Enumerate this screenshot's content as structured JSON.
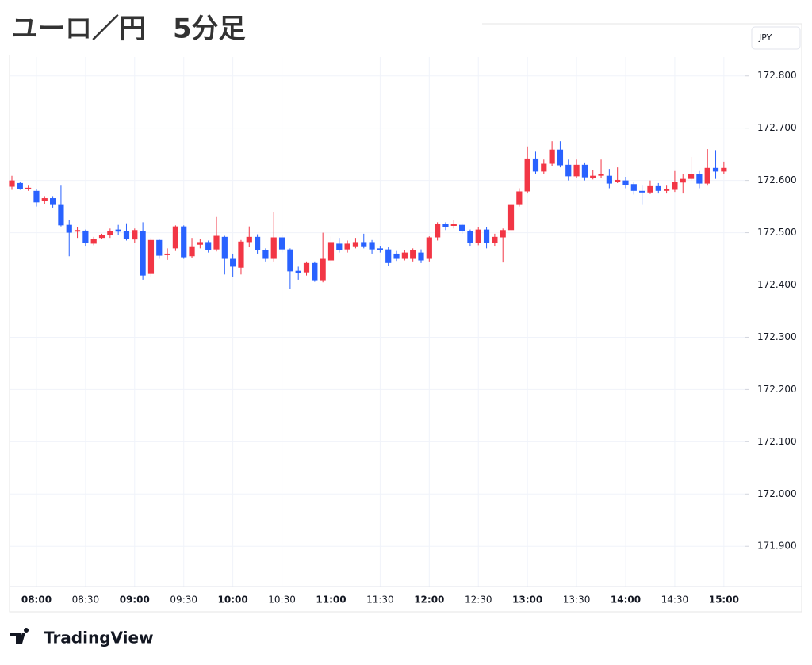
{
  "chart_data": {
    "type": "candlestick",
    "title": "ユーロ／円　5分足",
    "currency": "JPY",
    "brand": "TradingView",
    "up_color": "#f23645",
    "down_color": "#2962ff",
    "ylim": [
      171.823,
      172.836
    ],
    "yticks": [
      {
        "value": 171.9,
        "label": "171.900"
      },
      {
        "value": 172.0,
        "label": "172.000"
      },
      {
        "value": 172.1,
        "label": "172.100"
      },
      {
        "value": 172.2,
        "label": "172.200"
      },
      {
        "value": 172.3,
        "label": "172.300"
      },
      {
        "value": 172.4,
        "label": "172.400"
      },
      {
        "value": 172.5,
        "label": "172.500"
      },
      {
        "value": 172.6,
        "label": "172.600"
      },
      {
        "value": 172.7,
        "label": "172.700"
      },
      {
        "value": 172.8,
        "label": "172.800"
      }
    ],
    "grid": true,
    "categories": [
      null,
      null,
      null,
      "08:00",
      null,
      null,
      null,
      null,
      null,
      "08:30",
      null,
      null,
      null,
      null,
      null,
      "09:00",
      null,
      null,
      null,
      null,
      null,
      "09:30",
      null,
      null,
      null,
      null,
      null,
      "10:00",
      null,
      null,
      null,
      null,
      null,
      "10:30",
      null,
      null,
      null,
      null,
      null,
      "11:00",
      null,
      null,
      null,
      null,
      null,
      "11:30",
      null,
      null,
      null,
      null,
      null,
      "12:00",
      null,
      null,
      null,
      null,
      null,
      "12:30",
      null,
      null,
      null,
      null,
      null,
      "13:00",
      null,
      null,
      null,
      null,
      null,
      "13:30",
      null,
      null,
      null,
      null,
      null,
      "14:00",
      null,
      null,
      null,
      null,
      null,
      "14:30",
      null,
      null,
      null,
      null,
      null,
      "15:00"
    ],
    "open": [
      172.588,
      172.595,
      172.584,
      172.58,
      172.561,
      172.566,
      172.553,
      172.515,
      172.502,
      172.504,
      172.479,
      172.49,
      172.495,
      172.506,
      172.503,
      172.487,
      172.503,
      172.421,
      172.486,
      172.457,
      172.47,
      172.512,
      172.455,
      172.477,
      172.482,
      172.468,
      172.492,
      172.45,
      172.433,
      172.482,
      172.492,
      172.467,
      172.45,
      172.491,
      172.468,
      172.427,
      172.424,
      172.442,
      172.409,
      172.447,
      172.479,
      172.468,
      172.474,
      172.482,
      172.482,
      172.47,
      172.468,
      172.46,
      172.45,
      172.45,
      172.462,
      172.45,
      172.491,
      172.517,
      172.513,
      172.515,
      172.503,
      172.48,
      172.506,
      172.48,
      172.491,
      172.505,
      172.553,
      172.579,
      172.642,
      172.617,
      172.632,
      172.659,
      172.63,
      172.608,
      172.63,
      172.605,
      172.609,
      172.609,
      172.597,
      172.6,
      172.593,
      172.58,
      172.577,
      172.589,
      172.58,
      172.582,
      172.596,
      172.603,
      172.612,
      172.594,
      172.624,
      172.617
    ],
    "high": [
      172.609,
      172.597,
      172.59,
      172.584,
      172.57,
      172.57,
      172.59,
      172.525,
      172.51,
      172.506,
      172.492,
      172.498,
      172.508,
      172.515,
      172.518,
      172.508,
      172.52,
      172.49,
      172.488,
      172.47,
      172.514,
      172.514,
      172.49,
      172.488,
      172.485,
      172.53,
      172.494,
      172.46,
      172.486,
      172.512,
      172.497,
      172.47,
      172.54,
      172.495,
      172.47,
      172.435,
      172.445,
      172.445,
      172.5,
      172.493,
      172.49,
      172.485,
      172.49,
      172.498,
      172.486,
      172.475,
      172.472,
      172.465,
      172.466,
      172.47,
      172.468,
      172.493,
      172.52,
      172.52,
      172.524,
      172.518,
      172.506,
      172.51,
      172.51,
      172.498,
      172.508,
      172.556,
      172.585,
      172.665,
      172.655,
      172.64,
      172.675,
      172.675,
      172.64,
      172.64,
      172.633,
      172.62,
      172.64,
      172.622,
      172.625,
      172.607,
      172.597,
      172.59,
      172.6,
      172.595,
      172.59,
      172.618,
      172.612,
      172.645,
      172.618,
      172.66,
      172.658,
      172.636
    ],
    "low": [
      172.582,
      172.582,
      172.58,
      172.55,
      172.555,
      172.548,
      172.512,
      172.455,
      172.49,
      172.475,
      172.476,
      172.488,
      172.49,
      172.495,
      172.485,
      172.48,
      172.41,
      172.415,
      172.45,
      172.448,
      172.465,
      172.45,
      172.452,
      172.47,
      172.462,
      172.464,
      172.42,
      172.415,
      172.42,
      172.472,
      172.46,
      172.445,
      172.445,
      172.462,
      172.392,
      172.41,
      172.418,
      172.406,
      172.405,
      172.44,
      172.462,
      172.462,
      172.47,
      172.47,
      172.46,
      172.462,
      172.436,
      172.446,
      172.447,
      172.445,
      172.442,
      172.445,
      172.485,
      172.505,
      172.508,
      172.498,
      172.475,
      172.476,
      172.47,
      172.475,
      172.443,
      172.502,
      172.55,
      172.575,
      172.612,
      172.612,
      172.628,
      172.625,
      172.6,
      172.605,
      172.6,
      172.602,
      172.604,
      172.585,
      172.595,
      172.585,
      172.573,
      172.553,
      172.574,
      172.575,
      172.575,
      172.578,
      172.575,
      172.6,
      172.585,
      172.59,
      172.603,
      172.612
    ],
    "close": [
      172.6,
      172.583,
      172.586,
      172.558,
      172.566,
      172.553,
      172.514,
      172.5,
      172.505,
      172.48,
      172.488,
      172.495,
      172.503,
      172.502,
      172.488,
      172.505,
      172.418,
      172.486,
      172.456,
      172.46,
      172.512,
      172.453,
      172.474,
      172.482,
      172.467,
      172.494,
      172.45,
      172.435,
      172.483,
      172.492,
      172.467,
      172.45,
      172.491,
      172.468,
      172.426,
      172.423,
      172.442,
      172.409,
      172.45,
      172.482,
      172.467,
      172.479,
      172.482,
      172.474,
      172.468,
      172.467,
      172.442,
      172.45,
      172.462,
      172.467,
      172.447,
      172.491,
      172.517,
      172.51,
      172.516,
      172.503,
      172.48,
      172.506,
      172.48,
      172.492,
      172.505,
      172.553,
      172.579,
      172.642,
      172.617,
      172.632,
      172.659,
      172.629,
      172.608,
      172.63,
      172.606,
      172.609,
      172.612,
      172.594,
      172.601,
      172.591,
      172.58,
      172.577,
      172.589,
      172.58,
      172.583,
      172.597,
      172.603,
      172.612,
      172.594,
      172.624,
      172.617,
      172.624
    ]
  }
}
